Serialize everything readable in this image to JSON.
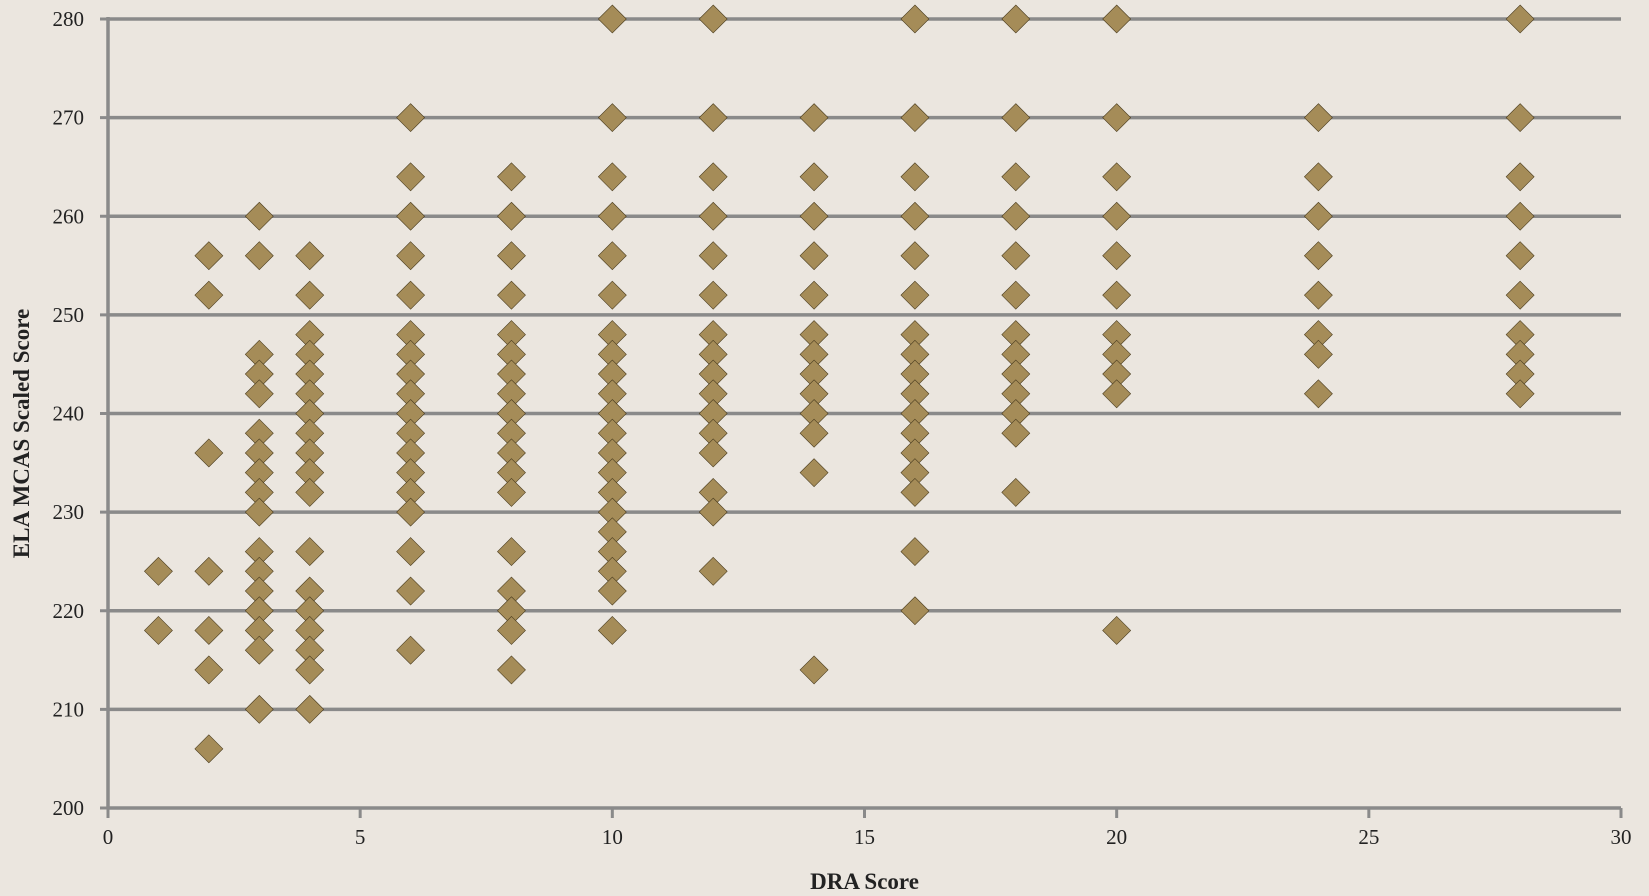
{
  "chart_data": {
    "type": "scatter",
    "title": "",
    "xlabel": "DRA Score",
    "ylabel": "ELA MCAS Scaled Score",
    "xlim": [
      0,
      30
    ],
    "ylim": [
      200,
      280
    ],
    "x_ticks": [
      0,
      5,
      10,
      15,
      20,
      25,
      30
    ],
    "y_ticks": [
      200,
      210,
      220,
      230,
      240,
      250,
      260,
      270,
      280
    ],
    "grid": "horizontal",
    "legend": "none",
    "marker": "diamond",
    "colors": {
      "marker": "#a58c58",
      "marker_edge": "#4a3c1e",
      "grid": "#8a8a8a",
      "background": "#ebe6df"
    },
    "series": [
      {
        "points": [
          [
            1,
            224
          ],
          [
            1,
            218
          ],
          [
            2,
            256
          ],
          [
            2,
            252
          ],
          [
            2,
            236
          ],
          [
            2,
            224
          ],
          [
            2,
            218
          ],
          [
            2,
            214
          ],
          [
            2,
            206
          ],
          [
            3,
            260
          ],
          [
            3,
            256
          ],
          [
            3,
            246
          ],
          [
            3,
            244
          ],
          [
            3,
            242
          ],
          [
            3,
            238
          ],
          [
            3,
            236
          ],
          [
            3,
            234
          ],
          [
            3,
            232
          ],
          [
            3,
            230
          ],
          [
            3,
            226
          ],
          [
            3,
            224
          ],
          [
            3,
            222
          ],
          [
            3,
            220
          ],
          [
            3,
            218
          ],
          [
            3,
            216
          ],
          [
            3,
            210
          ],
          [
            4,
            256
          ],
          [
            4,
            252
          ],
          [
            4,
            248
          ],
          [
            4,
            246
          ],
          [
            4,
            244
          ],
          [
            4,
            242
          ],
          [
            4,
            240
          ],
          [
            4,
            238
          ],
          [
            4,
            236
          ],
          [
            4,
            234
          ],
          [
            4,
            232
          ],
          [
            4,
            226
          ],
          [
            4,
            222
          ],
          [
            4,
            220
          ],
          [
            4,
            218
          ],
          [
            4,
            216
          ],
          [
            4,
            214
          ],
          [
            4,
            210
          ],
          [
            6,
            270
          ],
          [
            6,
            264
          ],
          [
            6,
            260
          ],
          [
            6,
            256
          ],
          [
            6,
            252
          ],
          [
            6,
            248
          ],
          [
            6,
            246
          ],
          [
            6,
            244
          ],
          [
            6,
            242
          ],
          [
            6,
            240
          ],
          [
            6,
            238
          ],
          [
            6,
            236
          ],
          [
            6,
            234
          ],
          [
            6,
            232
          ],
          [
            6,
            230
          ],
          [
            6,
            226
          ],
          [
            6,
            222
          ],
          [
            6,
            216
          ],
          [
            8,
            264
          ],
          [
            8,
            260
          ],
          [
            8,
            256
          ],
          [
            8,
            252
          ],
          [
            8,
            248
          ],
          [
            8,
            246
          ],
          [
            8,
            244
          ],
          [
            8,
            242
          ],
          [
            8,
            240
          ],
          [
            8,
            238
          ],
          [
            8,
            236
          ],
          [
            8,
            234
          ],
          [
            8,
            232
          ],
          [
            8,
            226
          ],
          [
            8,
            222
          ],
          [
            8,
            220
          ],
          [
            8,
            218
          ],
          [
            8,
            214
          ],
          [
            10,
            280
          ],
          [
            10,
            270
          ],
          [
            10,
            264
          ],
          [
            10,
            260
          ],
          [
            10,
            256
          ],
          [
            10,
            252
          ],
          [
            10,
            248
          ],
          [
            10,
            246
          ],
          [
            10,
            244
          ],
          [
            10,
            242
          ],
          [
            10,
            240
          ],
          [
            10,
            238
          ],
          [
            10,
            236
          ],
          [
            10,
            234
          ],
          [
            10,
            232
          ],
          [
            10,
            230
          ],
          [
            10,
            228
          ],
          [
            10,
            226
          ],
          [
            10,
            224
          ],
          [
            10,
            222
          ],
          [
            10,
            218
          ],
          [
            12,
            280
          ],
          [
            12,
            270
          ],
          [
            12,
            264
          ],
          [
            12,
            260
          ],
          [
            12,
            256
          ],
          [
            12,
            252
          ],
          [
            12,
            248
          ],
          [
            12,
            246
          ],
          [
            12,
            244
          ],
          [
            12,
            242
          ],
          [
            12,
            240
          ],
          [
            12,
            238
          ],
          [
            12,
            236
          ],
          [
            12,
            232
          ],
          [
            12,
            230
          ],
          [
            12,
            224
          ],
          [
            14,
            270
          ],
          [
            14,
            264
          ],
          [
            14,
            260
          ],
          [
            14,
            256
          ],
          [
            14,
            252
          ],
          [
            14,
            248
          ],
          [
            14,
            246
          ],
          [
            14,
            244
          ],
          [
            14,
            242
          ],
          [
            14,
            240
          ],
          [
            14,
            238
          ],
          [
            14,
            234
          ],
          [
            14,
            214
          ],
          [
            16,
            280
          ],
          [
            16,
            270
          ],
          [
            16,
            264
          ],
          [
            16,
            260
          ],
          [
            16,
            256
          ],
          [
            16,
            252
          ],
          [
            16,
            248
          ],
          [
            16,
            246
          ],
          [
            16,
            244
          ],
          [
            16,
            242
          ],
          [
            16,
            240
          ],
          [
            16,
            238
          ],
          [
            16,
            236
          ],
          [
            16,
            234
          ],
          [
            16,
            232
          ],
          [
            16,
            226
          ],
          [
            16,
            220
          ],
          [
            18,
            280
          ],
          [
            18,
            270
          ],
          [
            18,
            264
          ],
          [
            18,
            260
          ],
          [
            18,
            256
          ],
          [
            18,
            252
          ],
          [
            18,
            248
          ],
          [
            18,
            246
          ],
          [
            18,
            244
          ],
          [
            18,
            242
          ],
          [
            18,
            240
          ],
          [
            18,
            238
          ],
          [
            18,
            232
          ],
          [
            20,
            280
          ],
          [
            20,
            270
          ],
          [
            20,
            264
          ],
          [
            20,
            260
          ],
          [
            20,
            256
          ],
          [
            20,
            252
          ],
          [
            20,
            248
          ],
          [
            20,
            246
          ],
          [
            20,
            244
          ],
          [
            20,
            242
          ],
          [
            20,
            218
          ],
          [
            24,
            270
          ],
          [
            24,
            264
          ],
          [
            24,
            260
          ],
          [
            24,
            256
          ],
          [
            24,
            252
          ],
          [
            24,
            248
          ],
          [
            24,
            246
          ],
          [
            24,
            242
          ],
          [
            28,
            280
          ],
          [
            28,
            270
          ],
          [
            28,
            264
          ],
          [
            28,
            260
          ],
          [
            28,
            256
          ],
          [
            28,
            252
          ],
          [
            28,
            248
          ],
          [
            28,
            246
          ],
          [
            28,
            244
          ],
          [
            28,
            242
          ]
        ]
      }
    ]
  }
}
